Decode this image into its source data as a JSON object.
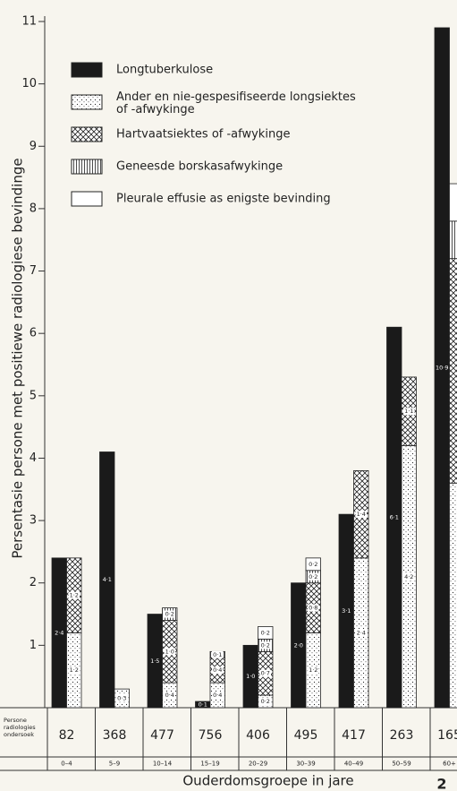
{
  "chart_data": {
    "type": "bar",
    "y_label": "Persentasie persone met positiewe radiologiese bevindinge",
    "x_label": "Ouderdomsgroepe in jare",
    "categories": [
      "0–4",
      "5–9",
      "10–14",
      "15–19",
      "20–29",
      "30–39",
      "40–49",
      "50–59",
      "60+"
    ],
    "ylim": [
      0,
      11
    ],
    "yticks": [
      1,
      2,
      3,
      4,
      5,
      6,
      7,
      8,
      9,
      10,
      11
    ],
    "series": [
      {
        "name": "Longtuberkulose",
        "pattern": "solid",
        "color": "#1a1a1a",
        "stack": false,
        "values": [
          2.4,
          4.1,
          1.5,
          0.1,
          1.0,
          2.0,
          3.1,
          6.1,
          10.9
        ],
        "value_labels": [
          "2·4",
          "4·1",
          "1·5",
          "0·1",
          "1·0",
          "2·0",
          "3·1",
          "6·1",
          "10·9"
        ]
      },
      {
        "name": "Ander en nie-gespesifiseerde longsiektes of -afwykinge",
        "pattern": "dots",
        "color": "#1a1a1a",
        "stack": true,
        "values": [
          1.2,
          0.3,
          0.4,
          0.4,
          0.2,
          1.2,
          2.4,
          4.2,
          3.6
        ],
        "value_labels": [
          "1·2",
          "0·3",
          "0·4",
          "0·4",
          "0·2",
          "1·2",
          "2·4",
          "4·2",
          null
        ]
      },
      {
        "name": "Hartvaatsiektes of -afwykinge",
        "pattern": "crosshatch",
        "color": "#1a1a1a",
        "stack": true,
        "values": [
          1.2,
          null,
          1.0,
          0.4,
          0.7,
          0.8,
          1.4,
          1.1,
          3.6
        ],
        "value_labels": [
          "1·2",
          null,
          "1·0",
          "0·4",
          "0·7",
          "0·8",
          "1·4",
          "1·1",
          null
        ]
      },
      {
        "name": "Geneesde borskasafwykinge",
        "pattern": "vlines",
        "color": "#1a1a1a",
        "stack": true,
        "values": [
          null,
          null,
          0.2,
          0.1,
          0.2,
          0.2,
          null,
          null,
          0.6
        ],
        "value_labels": [
          null,
          null,
          "0·2",
          "0·1",
          "0·2",
          "0·2",
          null,
          null,
          null
        ]
      },
      {
        "name": "Pleurale effusie as enigste bevinding",
        "pattern": "blank",
        "color": "#1a1a1a",
        "stack": true,
        "values": [
          null,
          null,
          null,
          null,
          0.2,
          0.2,
          null,
          null,
          0.6
        ],
        "value_labels": [
          null,
          null,
          null,
          null,
          "0·2",
          "0·2",
          null,
          null,
          null
        ]
      }
    ],
    "table": {
      "row_header": "Persone radiologies ondersoek",
      "values": [
        82,
        368,
        477,
        756,
        406,
        495,
        417,
        263,
        165
      ]
    },
    "page_number": "2"
  }
}
